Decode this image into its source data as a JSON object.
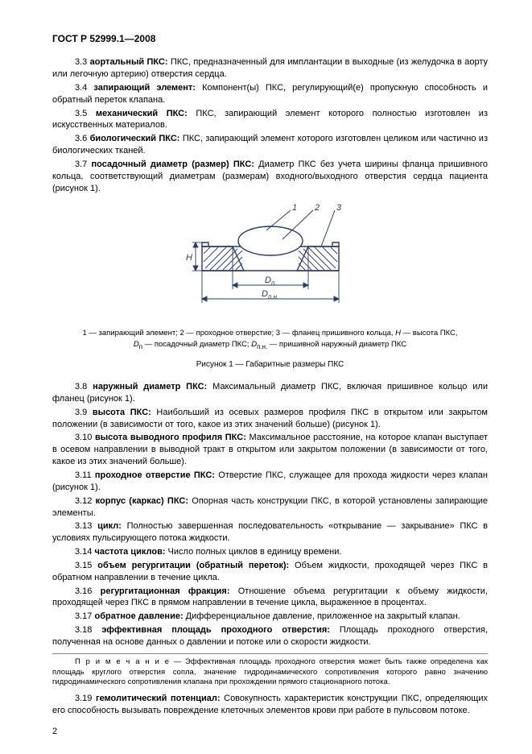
{
  "header": "ГОСТ Р 52999.1—2008",
  "defs": [
    {
      "num": "3.3",
      "term": "аортальный ПКС:",
      "text": " ПКС, предназначенный для имплантации в выходные (из желудочка в аорту или легочную артерию) отверстия сердца."
    },
    {
      "num": "3.4",
      "term": "запирающий элемент:",
      "text": " Компонент(ы) ПКС, регулирующий(е) пропускную способность и обратный переток клапана."
    },
    {
      "num": "3.5",
      "term": "механический ПКС:",
      "text": " ПКС, запирающий элемент которого полностью изготовлен из искусственных материалов."
    },
    {
      "num": "3.6",
      "term": "биологический ПКС:",
      "text": " ПКС, запирающий элемент которого изготовлен целиком или частично из биологических тканей."
    },
    {
      "num": "3.7",
      "term": "посадочный диаметр (размер) ПКС:",
      "text": " Диаметр ПКС без учета ширины фланца пришивного кольца, соответствующий диаметрам (размерам) входного/выходного отверстия сердца пациента (рисунок 1)."
    }
  ],
  "defs2": [
    {
      "num": "3.8",
      "term": "наружный диаметр ПКС:",
      "text": " Максимальный диаметр ПКС, включая пришивное кольцо или фланец (рисунок 1)."
    },
    {
      "num": "3.9",
      "term": "высота ПКС:",
      "text": " Наибольший из осевых размеров профиля ПКС в открытом или закрытом положении (в зависимости от того, какое из этих значений больше) (рисунок 1)."
    },
    {
      "num": "3.10",
      "term": "высота выводного профиля ПКС:",
      "text": " Максимальное расстояние, на которое клапан выступает в осевом направлении в выводной тракт в открытом или закрытом положении (в зависимости от того, какое из этих значений больше)."
    },
    {
      "num": "3.11",
      "term": "проходное отверстие ПКС:",
      "text": " Отверстие ПКС, служащее для прохода жидкости через клапан (рисунок 1)."
    },
    {
      "num": "3.12",
      "term": "корпус (каркас) ПКС:",
      "text": " Опорная часть конструкции ПКС, в которой установлены запирающие элементы."
    },
    {
      "num": "3.13",
      "term": "цикл:",
      "text": " Полностью завершенная последовательность «открывание — закрывание» ПКС в условиях пульсирующего потока жидкости."
    },
    {
      "num": "3.14",
      "term": "частота циклов:",
      "text": " Число полных циклов в единицу времени."
    },
    {
      "num": "3.15",
      "term": "объем регургитации (обратный переток):",
      "text": " Объем жидкости, проходящей через ПКС в обратном направлении в течение цикла."
    },
    {
      "num": "3.16",
      "term": "регургитационная фракция:",
      "text": " Отношение объема регургитации к объему жидкости, проходящей через ПКС в прямом направлении в течение цикла, выраженное в процентах."
    },
    {
      "num": "3.17",
      "term": "обратное давление:",
      "text": " Дифференциальное давление, приложенное на закрытый клапан."
    },
    {
      "num": "3.18",
      "term": "эффективная площадь проходного отверстия:",
      "text": " Площадь проходного отверстия, полученная на основе данных о давлении и потоке или о скорости жидкости."
    }
  ],
  "note_lead": "П р и м е ч а н и е",
  "note_text": " — Эффективная площадь проходного отверстия может быть также определена как площадь круглого отверстия сопла, значение гидродинамического сопротивления которого равно значению гидродинамического сопротивления клапана при прохождении прямого стационарного потока.",
  "defs3": [
    {
      "num": "3.19",
      "term": "гемолитический потенциал:",
      "text": " Совокупность характеристик конструкции ПКС, определяющих его способность вызывать повреждение клеточных элементов крови при работе в пульсовом потоке."
    }
  ],
  "figure": {
    "legend_line1_a": "1 — запирающий элемент; 2 — проходное отверстие; 3 — фланец пришивного кольца, ",
    "legend_line1_h": "H",
    "legend_line1_b": " — высота ПКС,",
    "legend_line2_a": " — посадочный диаметр ПКС; ",
    "legend_line2_b": " — пришивной наружный диаметр ПКС",
    "caption": "Рисунок 1 — Габаритные размеры ПКС",
    "labels": {
      "one": "1",
      "two": "2",
      "three": "3",
      "H": "H",
      "Dp": "D",
      "Dp_sub": "п",
      "Dpn": "D",
      "Dpn_sub": "п.н."
    },
    "colors": {
      "stroke": "#2a3a6a",
      "fill": "#ffffff",
      "page": "#ffffff"
    }
  },
  "pagenum": "2"
}
